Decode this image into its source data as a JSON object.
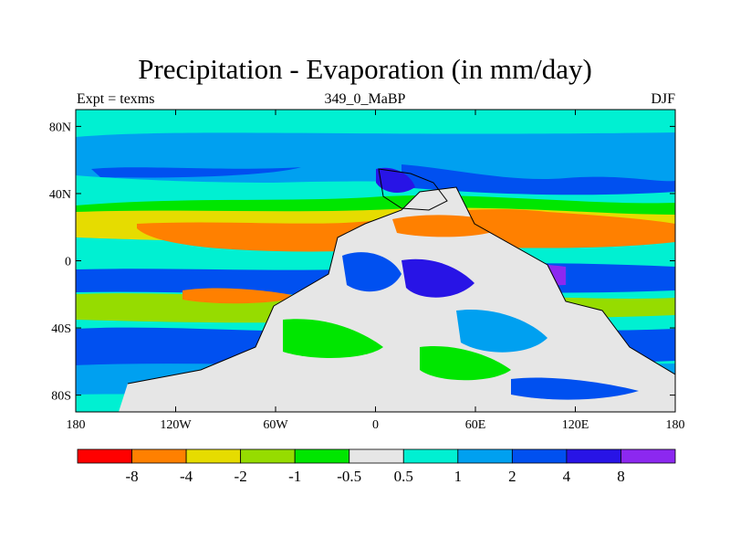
{
  "title": "Precipitation - Evaporation (in mm/day)",
  "subtitle_left": "Expt = texms",
  "subtitle_center": "349_0_MaBP",
  "subtitle_right": "DJF",
  "y_ticks": [
    {
      "label": "80N",
      "lat": 80
    },
    {
      "label": "40N",
      "lat": 40
    },
    {
      "label": "0",
      "lat": 0
    },
    {
      "label": "40S",
      "lat": -40
    },
    {
      "label": "80S",
      "lat": -80
    }
  ],
  "x_ticks": [
    {
      "label": "180",
      "lon": -180
    },
    {
      "label": "120W",
      "lon": -120
    },
    {
      "label": "60W",
      "lon": -60
    },
    {
      "label": "0",
      "lon": 0
    },
    {
      "label": "60E",
      "lon": 60
    },
    {
      "label": "120E",
      "lon": 120
    },
    {
      "label": "180",
      "lon": 180
    }
  ],
  "colorbar": {
    "colors": [
      "#ff0000",
      "#ff8000",
      "#e6dc00",
      "#96dc00",
      "#00e600",
      "#e6e6e6",
      "#00f0d2",
      "#00a0f0",
      "#0050f0",
      "#2814e6",
      "#8c28f0"
    ],
    "labels": [
      "-8",
      "-4",
      "-2",
      "-1",
      "-0.5",
      "0.5",
      "1",
      "2",
      "4",
      "8"
    ]
  },
  "colors": {
    "ocean": "#00f0d2",
    "land_neutral": "#e6e6e6"
  }
}
